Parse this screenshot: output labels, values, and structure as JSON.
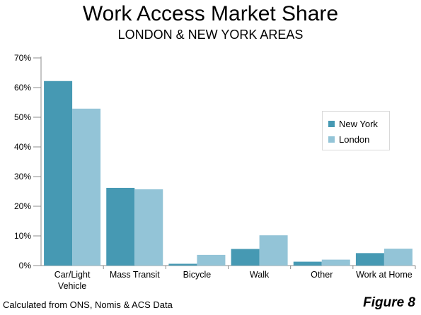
{
  "header": {
    "title": "Work Access Market Share",
    "subtitle": "LONDON & NEW YORK AREAS"
  },
  "footer": {
    "source": "Calculated from ONS, Nomis & ACS Data",
    "figure": "Figure 8"
  },
  "chart_data": {
    "type": "bar",
    "categories": [
      "Car/Light Vehicle",
      "Mass Transit",
      "Bicycle",
      "Walk",
      "Other",
      "Work at Home"
    ],
    "category_lines": [
      [
        "Car/Light",
        "Vehicle"
      ],
      [
        "Mass Transit"
      ],
      [
        "Bicycle"
      ],
      [
        "Walk"
      ],
      [
        "Other"
      ],
      [
        "Work at Home"
      ]
    ],
    "series": [
      {
        "name": "New York",
        "values": [
          62.2,
          26.2,
          0.6,
          5.6,
          1.3,
          4.2
        ],
        "color": "#4699b3"
      },
      {
        "name": "London",
        "values": [
          52.9,
          25.7,
          3.6,
          10.2,
          2.0,
          5.7
        ],
        "color": "#93c4d7"
      }
    ],
    "y_ticks": [
      "0%",
      "10%",
      "20%",
      "30%",
      "40%",
      "50%",
      "60%",
      "70%"
    ],
    "ylim": [
      0,
      70
    ],
    "grid": false,
    "legend": "right"
  }
}
